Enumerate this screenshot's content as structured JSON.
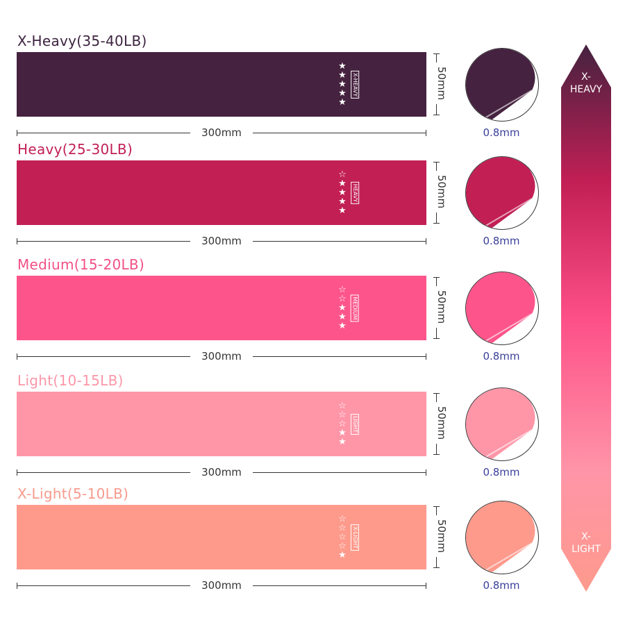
{
  "bands": [
    {
      "title": "X-Heavy(35-40LB)",
      "tag": "X-HEAVY",
      "stars_filled": 5,
      "stars_total": 5,
      "width": "300mm",
      "height": "50mm",
      "thickness": "0.8mm",
      "color": "#45223f",
      "title_color": "#3d2340"
    },
    {
      "title": "Heavy(25-30LB)",
      "tag": "HEAVY",
      "stars_filled": 4,
      "stars_total": 5,
      "width": "300mm",
      "height": "50mm",
      "thickness": "0.8mm",
      "color": "#c21f55",
      "title_color": "#c21f55"
    },
    {
      "title": "Medium(15-20LB)",
      "tag": "MEDIUM",
      "stars_filled": 3,
      "stars_total": 5,
      "width": "300mm",
      "height": "50mm",
      "thickness": "0.8mm",
      "color": "#fd558b",
      "title_color": "#f25088"
    },
    {
      "title": "Light(10-15LB)",
      "tag": "LIGHT",
      "stars_filled": 2,
      "stars_total": 5,
      "width": "300mm",
      "height": "50mm",
      "thickness": "0.8mm",
      "color": "#ff96a8",
      "title_color": "#fb96a8"
    },
    {
      "title": "X-Light(5-10LB)",
      "tag": "X-LIGHT",
      "stars_filled": 1,
      "stars_total": 5,
      "width": "300mm",
      "height": "50mm",
      "thickness": "0.8mm",
      "color": "#fd9a8c",
      "title_color": "#f79a8c"
    }
  ],
  "scale": {
    "top_label_1": "X-",
    "top_label_2": "HEAVY",
    "bottom_label_1": "X-",
    "bottom_label_2": "LIGHT",
    "gradient": [
      "#45223f",
      "#c21f55",
      "#fd4f88",
      "#ff95a8",
      "#fd9a8c"
    ]
  }
}
